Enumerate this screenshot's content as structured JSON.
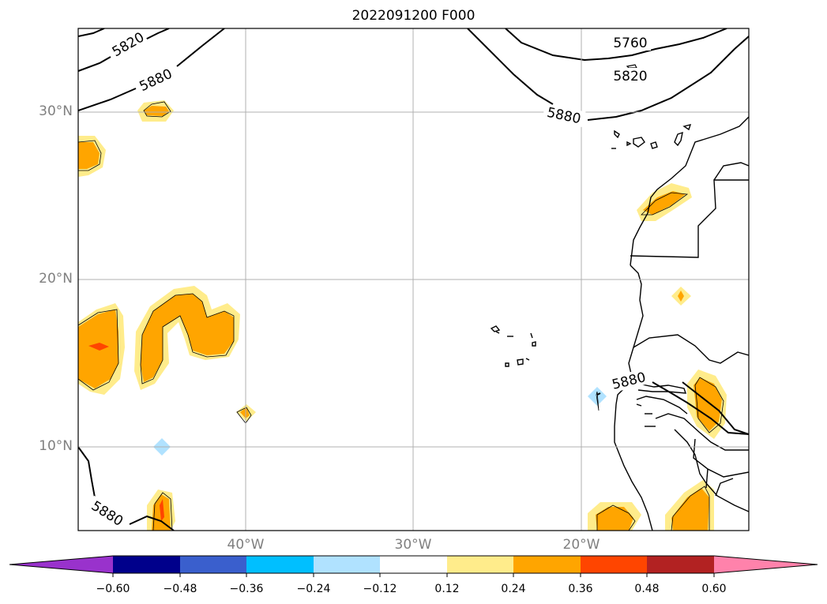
{
  "title": "2022091200 F000",
  "map": {
    "lat_labels": [
      "30°N",
      "20°N",
      "10°N"
    ],
    "lon_labels": [
      "40°W",
      "30°W",
      "20°W"
    ],
    "contour_labels": [
      "5820",
      "5880",
      "5760",
      "5820",
      "5880",
      "5880",
      "5880"
    ],
    "contour_color": "#000000",
    "grid_color": "#b0b0b0"
  },
  "colorbar": {
    "colors": [
      "#9932cc",
      "#00008b",
      "#3a5fcd",
      "#00bfff",
      "#b0e2ff",
      "#ffffff",
      "#ffec8b",
      "#ffa500",
      "#ff4500",
      "#b22222",
      "#ff82ab"
    ],
    "ticks": [
      "−0.60",
      "−0.48",
      "−0.36",
      "−0.24",
      "−0.12",
      "0.12",
      "0.24",
      "0.36",
      "0.48",
      "0.60"
    ]
  }
}
